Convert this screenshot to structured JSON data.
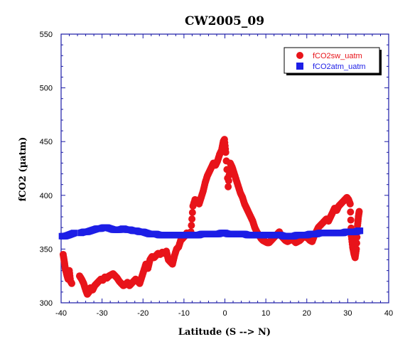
{
  "chart_data": {
    "type": "scatter",
    "title": "CW2005_09",
    "xlabel": "Latitude (S --> N)",
    "ylabel": "fCO2 (µatm)",
    "xlim": [
      -40,
      40
    ],
    "ylim": [
      300,
      550
    ],
    "xticks": [
      "-40",
      "-30",
      "-20",
      "-10",
      "0",
      "10",
      "20",
      "30",
      "40"
    ],
    "yticks": [
      "300",
      "350",
      "400",
      "450",
      "500",
      "550"
    ],
    "grid": false,
    "legend_position": "top-right",
    "series": [
      {
        "name": "fCO2sw_uatm",
        "color": "#e8141a",
        "marker": "circle",
        "points": [
          [
            -39.5,
            345
          ],
          [
            -39.2,
            338
          ],
          [
            -39.0,
            332
          ],
          [
            -38.6,
            326
          ],
          [
            -38.3,
            322
          ],
          [
            -38.0,
            330
          ],
          [
            -37.7,
            320
          ],
          [
            -37.4,
            318
          ],
          [
            -35.5,
            325
          ],
          [
            -35.0,
            322
          ],
          [
            -34.5,
            318
          ],
          [
            -34.0,
            312
          ],
          [
            -33.6,
            308
          ],
          [
            -33.2,
            310
          ],
          [
            -32.8,
            314
          ],
          [
            -32.3,
            312
          ],
          [
            -31.8,
            316
          ],
          [
            -31.3,
            318
          ],
          [
            -30.8,
            320
          ],
          [
            -30.3,
            322
          ],
          [
            -29.8,
            321
          ],
          [
            -29.3,
            324
          ],
          [
            -28.8,
            323
          ],
          [
            -28.3,
            325
          ],
          [
            -27.8,
            326
          ],
          [
            -27.3,
            327
          ],
          [
            -26.8,
            325
          ],
          [
            -26.3,
            323
          ],
          [
            -25.8,
            320
          ],
          [
            -25.3,
            318
          ],
          [
            -24.8,
            316
          ],
          [
            -24.3,
            317
          ],
          [
            -23.8,
            319
          ],
          [
            -23.3,
            316
          ],
          [
            -22.8,
            318
          ],
          [
            -22.3,
            320
          ],
          [
            -21.8,
            322
          ],
          [
            -21.3,
            320
          ],
          [
            -20.8,
            318
          ],
          [
            -20.3,
            324
          ],
          [
            -19.8,
            330
          ],
          [
            -19.3,
            336
          ],
          [
            -18.8,
            332
          ],
          [
            -18.3,
            340
          ],
          [
            -17.8,
            343
          ],
          [
            -17.3,
            342
          ],
          [
            -16.8,
            344
          ],
          [
            -16.3,
            346
          ],
          [
            -15.8,
            345
          ],
          [
            -15.3,
            347
          ],
          [
            -14.8,
            346
          ],
          [
            -14.3,
            348
          ],
          [
            -13.8,
            340
          ],
          [
            -13.3,
            338
          ],
          [
            -12.8,
            336
          ],
          [
            -12.3,
            344
          ],
          [
            -11.8,
            350
          ],
          [
            -11.3,
            352
          ],
          [
            -10.8,
            358
          ],
          [
            -10.3,
            360
          ],
          [
            -9.8,
            362
          ],
          [
            -9.3,
            365
          ],
          [
            -8.8,
            364
          ],
          [
            -8.3,
            366
          ],
          [
            -7.8,
            390
          ],
          [
            -7.3,
            396
          ],
          [
            -6.8,
            395
          ],
          [
            -6.3,
            392
          ],
          [
            -5.8,
            398
          ],
          [
            -5.3,
            404
          ],
          [
            -4.8,
            412
          ],
          [
            -4.3,
            418
          ],
          [
            -3.8,
            422
          ],
          [
            -3.3,
            426
          ],
          [
            -2.8,
            430
          ],
          [
            -2.3,
            428
          ],
          [
            -1.8,
            432
          ],
          [
            -1.3,
            438
          ],
          [
            -0.8,
            442
          ],
          [
            -0.4,
            450
          ],
          [
            -0.1,
            452
          ],
          [
            0.2,
            440
          ],
          [
            0.8,
            408
          ],
          [
            1.3,
            430
          ],
          [
            1.8,
            426
          ],
          [
            2.3,
            420
          ],
          [
            2.8,
            414
          ],
          [
            3.3,
            408
          ],
          [
            3.8,
            402
          ],
          [
            4.3,
            398
          ],
          [
            4.8,
            392
          ],
          [
            5.3,
            388
          ],
          [
            5.8,
            384
          ],
          [
            6.3,
            380
          ],
          [
            6.8,
            376
          ],
          [
            7.3,
            370
          ],
          [
            7.8,
            366
          ],
          [
            8.3,
            363
          ],
          [
            8.8,
            360
          ],
          [
            9.3,
            358
          ],
          [
            9.8,
            357
          ],
          [
            10.3,
            356
          ],
          [
            10.8,
            356
          ],
          [
            11.3,
            358
          ],
          [
            11.8,
            360
          ],
          [
            12.3,
            362
          ],
          [
            12.8,
            364
          ],
          [
            13.3,
            366
          ],
          [
            13.8,
            362
          ],
          [
            14.3,
            360
          ],
          [
            14.8,
            358
          ],
          [
            15.3,
            357
          ],
          [
            15.8,
            358
          ],
          [
            16.3,
            359
          ],
          [
            16.8,
            358
          ],
          [
            17.3,
            356
          ],
          [
            17.8,
            357
          ],
          [
            18.3,
            358
          ],
          [
            18.8,
            360
          ],
          [
            19.3,
            362
          ],
          [
            19.8,
            361
          ],
          [
            20.3,
            360
          ],
          [
            20.8,
            358
          ],
          [
            21.3,
            357
          ],
          [
            21.8,
            362
          ],
          [
            22.3,
            366
          ],
          [
            22.8,
            370
          ],
          [
            23.3,
            372
          ],
          [
            23.8,
            374
          ],
          [
            24.3,
            376
          ],
          [
            24.8,
            378
          ],
          [
            25.3,
            376
          ],
          [
            25.8,
            380
          ],
          [
            26.3,
            384
          ],
          [
            26.8,
            388
          ],
          [
            27.3,
            386
          ],
          [
            27.8,
            390
          ],
          [
            28.3,
            392
          ],
          [
            28.8,
            394
          ],
          [
            29.3,
            396
          ],
          [
            29.8,
            398
          ],
          [
            30.2,
            396
          ],
          [
            30.6,
            392
          ],
          [
            30.9,
            362
          ],
          [
            31.2,
            352
          ],
          [
            31.5,
            346
          ],
          [
            31.8,
            342
          ],
          [
            32.1,
            350
          ],
          [
            32.4,
            372
          ],
          [
            32.6,
            380
          ],
          [
            32.8,
            385
          ]
        ]
      },
      {
        "name": "fCO2atm_uatm",
        "color": "#1d1ee6",
        "marker": "square",
        "points": [
          [
            -39.8,
            362
          ],
          [
            -39.0,
            362
          ],
          [
            -38.2,
            363
          ],
          [
            -37.5,
            364
          ],
          [
            -36.8,
            365
          ],
          [
            -35.2,
            365
          ],
          [
            -34.4,
            366
          ],
          [
            -33.6,
            366
          ],
          [
            -32.8,
            367
          ],
          [
            -32.0,
            368
          ],
          [
            -31.2,
            369
          ],
          [
            -30.4,
            369
          ],
          [
            -29.6,
            370
          ],
          [
            -28.8,
            370
          ],
          [
            -28.0,
            369
          ],
          [
            -27.2,
            368
          ],
          [
            -26.4,
            368
          ],
          [
            -25.6,
            368
          ],
          [
            -24.8,
            369
          ],
          [
            -24.0,
            368
          ],
          [
            -23.2,
            368
          ],
          [
            -22.4,
            367
          ],
          [
            -21.6,
            367
          ],
          [
            -20.8,
            366
          ],
          [
            -20.0,
            366
          ],
          [
            -19.2,
            365
          ],
          [
            -18.4,
            364
          ],
          [
            -17.6,
            364
          ],
          [
            -16.8,
            364
          ],
          [
            -16.0,
            363
          ],
          [
            -15.2,
            363
          ],
          [
            -14.4,
            363
          ],
          [
            -13.6,
            363
          ],
          [
            -12.8,
            363
          ],
          [
            -12.0,
            363
          ],
          [
            -11.2,
            363
          ],
          [
            -10.4,
            363
          ],
          [
            -9.6,
            363
          ],
          [
            -8.8,
            363
          ],
          [
            -8.0,
            363
          ],
          [
            -7.2,
            363
          ],
          [
            -6.4,
            363
          ],
          [
            -5.6,
            364
          ],
          [
            -4.8,
            364
          ],
          [
            -4.0,
            364
          ],
          [
            -3.2,
            364
          ],
          [
            -2.4,
            364
          ],
          [
            -1.6,
            364
          ],
          [
            -0.8,
            365
          ],
          [
            0.0,
            365
          ],
          [
            0.8,
            364
          ],
          [
            1.6,
            364
          ],
          [
            2.4,
            364
          ],
          [
            3.2,
            364
          ],
          [
            4.0,
            364
          ],
          [
            4.8,
            364
          ],
          [
            5.6,
            363
          ],
          [
            6.4,
            363
          ],
          [
            7.2,
            363
          ],
          [
            8.0,
            363
          ],
          [
            8.8,
            363
          ],
          [
            9.6,
            363
          ],
          [
            10.4,
            363
          ],
          [
            11.2,
            363
          ],
          [
            12.0,
            363
          ],
          [
            12.8,
            363
          ],
          [
            13.6,
            363
          ],
          [
            14.4,
            362
          ],
          [
            15.2,
            362
          ],
          [
            16.0,
            362
          ],
          [
            16.8,
            362
          ],
          [
            17.6,
            363
          ],
          [
            18.4,
            363
          ],
          [
            19.2,
            363
          ],
          [
            20.0,
            363
          ],
          [
            20.8,
            364
          ],
          [
            21.6,
            364
          ],
          [
            22.4,
            364
          ],
          [
            23.2,
            365
          ],
          [
            24.0,
            365
          ],
          [
            24.8,
            365
          ],
          [
            25.6,
            365
          ],
          [
            26.4,
            365
          ],
          [
            27.2,
            365
          ],
          [
            28.0,
            365
          ],
          [
            28.8,
            365
          ],
          [
            29.6,
            366
          ],
          [
            30.4,
            366
          ],
          [
            31.2,
            366
          ],
          [
            32.0,
            366
          ],
          [
            32.6,
            367
          ],
          [
            33.0,
            367
          ]
        ]
      }
    ]
  }
}
